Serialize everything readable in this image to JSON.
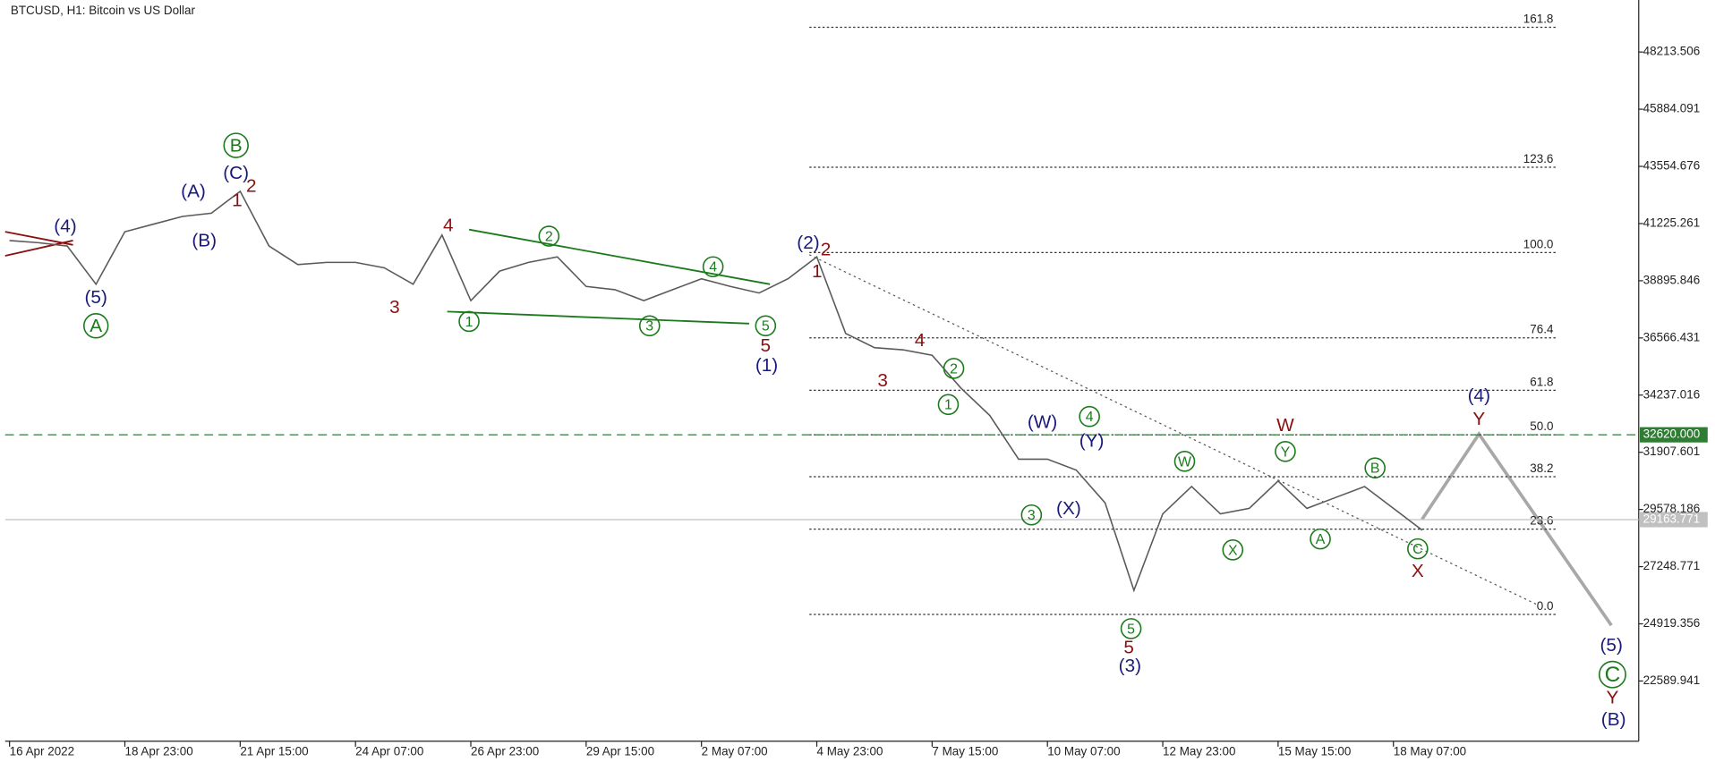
{
  "chart_data": {
    "type": "line",
    "title": "BTCUSD, H1:  Bitcoin vs US Dollar",
    "categories": [
      "16 Apr 2022",
      null,
      null,
      null,
      "18 Apr 23:00",
      null,
      null,
      null,
      "21 Apr 15:00",
      null,
      null,
      null,
      "24 Apr 07:00",
      null,
      null,
      null,
      "26 Apr 23:00",
      null,
      null,
      null,
      "29 Apr 15:00",
      null,
      null,
      null,
      "2 May 07:00",
      null,
      null,
      null,
      "4 May 23:00",
      null,
      null,
      null,
      "7 May 15:00",
      null,
      null,
      null,
      "10 May 07:00",
      null,
      null,
      null,
      "12 May 23:00",
      null,
      null,
      null,
      "15 May 15:00",
      null,
      null,
      null,
      "18 May 07:00",
      null
    ],
    "values": [
      40535,
      40446,
      40312,
      38753,
      40891,
      41203,
      41515,
      41648,
      42539,
      40312,
      39555,
      39644,
      39644,
      39421,
      38753,
      40758,
      38085,
      39288,
      39644,
      39867,
      38664,
      38531,
      38085,
      38531,
      38976,
      38664,
      38397,
      38976,
      39867,
      36749,
      36170,
      36081,
      35858,
      34522,
      33408,
      31627,
      31627,
      31181,
      29845,
      26282,
      29400,
      30513,
      29400,
      29623,
      30736,
      29623,
      30068,
      30513,
      29623,
      28732
    ],
    "color": "#5a5a5a",
    "ylim": [
      20136,
      50333
    ],
    "yticks": [
      48213.506,
      45884.091,
      43554.676,
      41225.261,
      38895.846,
      36566.431,
      34237.016,
      31907.601,
      29578.186,
      27248.771,
      24919.356,
      22589.941
    ],
    "fib_levels": [
      {
        "label": "161.8",
        "price": 49220
      },
      {
        "label": "123.6",
        "price": 43519
      },
      {
        "label": "100.0",
        "price": 40045
      },
      {
        "label": "76.4",
        "price": 36571
      },
      {
        "label": "61.8",
        "price": 34433
      },
      {
        "label": "50.0",
        "price": 32620
      },
      {
        "label": "38.2",
        "price": 30914
      },
      {
        "label": "23.6",
        "price": 28776
      },
      {
        "label": "0.0",
        "price": 25302
      }
    ],
    "price_lines": [
      {
        "value": 32620,
        "label": "32620.000",
        "color": "#2e7d32"
      },
      {
        "value": 29163.771,
        "label": "29163.771",
        "color": "#c0c0c0"
      }
    ],
    "annotations": [
      {
        "text": "(4)",
        "color": "#1a1a7a"
      },
      {
        "text": "(5)",
        "color": "#1a1a7a"
      },
      {
        "text": "A",
        "color": "#1b7a1b"
      },
      {
        "text": "(A)",
        "color": "#1a1a7a"
      },
      {
        "text": "(B)",
        "color": "#1a1a7a"
      },
      {
        "text": "(C)",
        "color": "#1a1a7a"
      },
      {
        "text": "B",
        "color": "#1b7a1b"
      },
      {
        "text": "1",
        "color": "#8b1010"
      },
      {
        "text": "2",
        "color": "#8b1010"
      },
      {
        "text": "3",
        "color": "#8b1010"
      },
      {
        "text": "4",
        "color": "#8b1010"
      },
      {
        "text": "1",
        "color": "#1b7a1b"
      },
      {
        "text": "2",
        "color": "#1b7a1b"
      },
      {
        "text": "3",
        "color": "#1b7a1b"
      },
      {
        "text": "4",
        "color": "#1b7a1b"
      },
      {
        "text": "5",
        "color": "#1b7a1b"
      },
      {
        "text": "5",
        "color": "#8b1010"
      },
      {
        "text": "(1)",
        "color": "#1a1a7a"
      },
      {
        "text": "(2)",
        "color": "#1a1a7a"
      },
      {
        "text": "1",
        "color": "#8b1010"
      },
      {
        "text": "2",
        "color": "#8b1010"
      },
      {
        "text": "4",
        "color": "#8b1010"
      },
      {
        "text": "3",
        "color": "#8b1010"
      },
      {
        "text": "2",
        "color": "#1b7a1b"
      },
      {
        "text": "1",
        "color": "#1b7a1b"
      },
      {
        "text": "(W)",
        "color": "#1a1a7a"
      },
      {
        "text": "4",
        "color": "#1b7a1b"
      },
      {
        "text": "(Y)",
        "color": "#1a1a7a"
      },
      {
        "text": "3",
        "color": "#1b7a1b"
      },
      {
        "text": "(X)",
        "color": "#1a1a7a"
      },
      {
        "text": "W",
        "color": "#1b7a1b"
      },
      {
        "text": "W",
        "color": "#8b1010"
      },
      {
        "text": "Y",
        "color": "#1b7a1b"
      },
      {
        "text": "X",
        "color": "#1b7a1b"
      },
      {
        "text": "A",
        "color": "#1b7a1b"
      },
      {
        "text": "B",
        "color": "#1b7a1b"
      },
      {
        "text": "C",
        "color": "#1b7a1b"
      },
      {
        "text": "X",
        "color": "#8b1010"
      },
      {
        "text": "(4)",
        "color": "#1a1a7a"
      },
      {
        "text": "Y",
        "color": "#8b1010"
      },
      {
        "text": "5",
        "color": "#1b7a1b"
      },
      {
        "text": "5",
        "color": "#8b1010"
      },
      {
        "text": "(3)",
        "color": "#1a1a7a"
      },
      {
        "text": "(5)",
        "color": "#1a1a7a"
      },
      {
        "text": "C",
        "color": "#1b7a1b"
      },
      {
        "text": "Y",
        "color": "#8b1010"
      },
      {
        "text": "(B)",
        "color": "#1a1a7a"
      }
    ]
  }
}
